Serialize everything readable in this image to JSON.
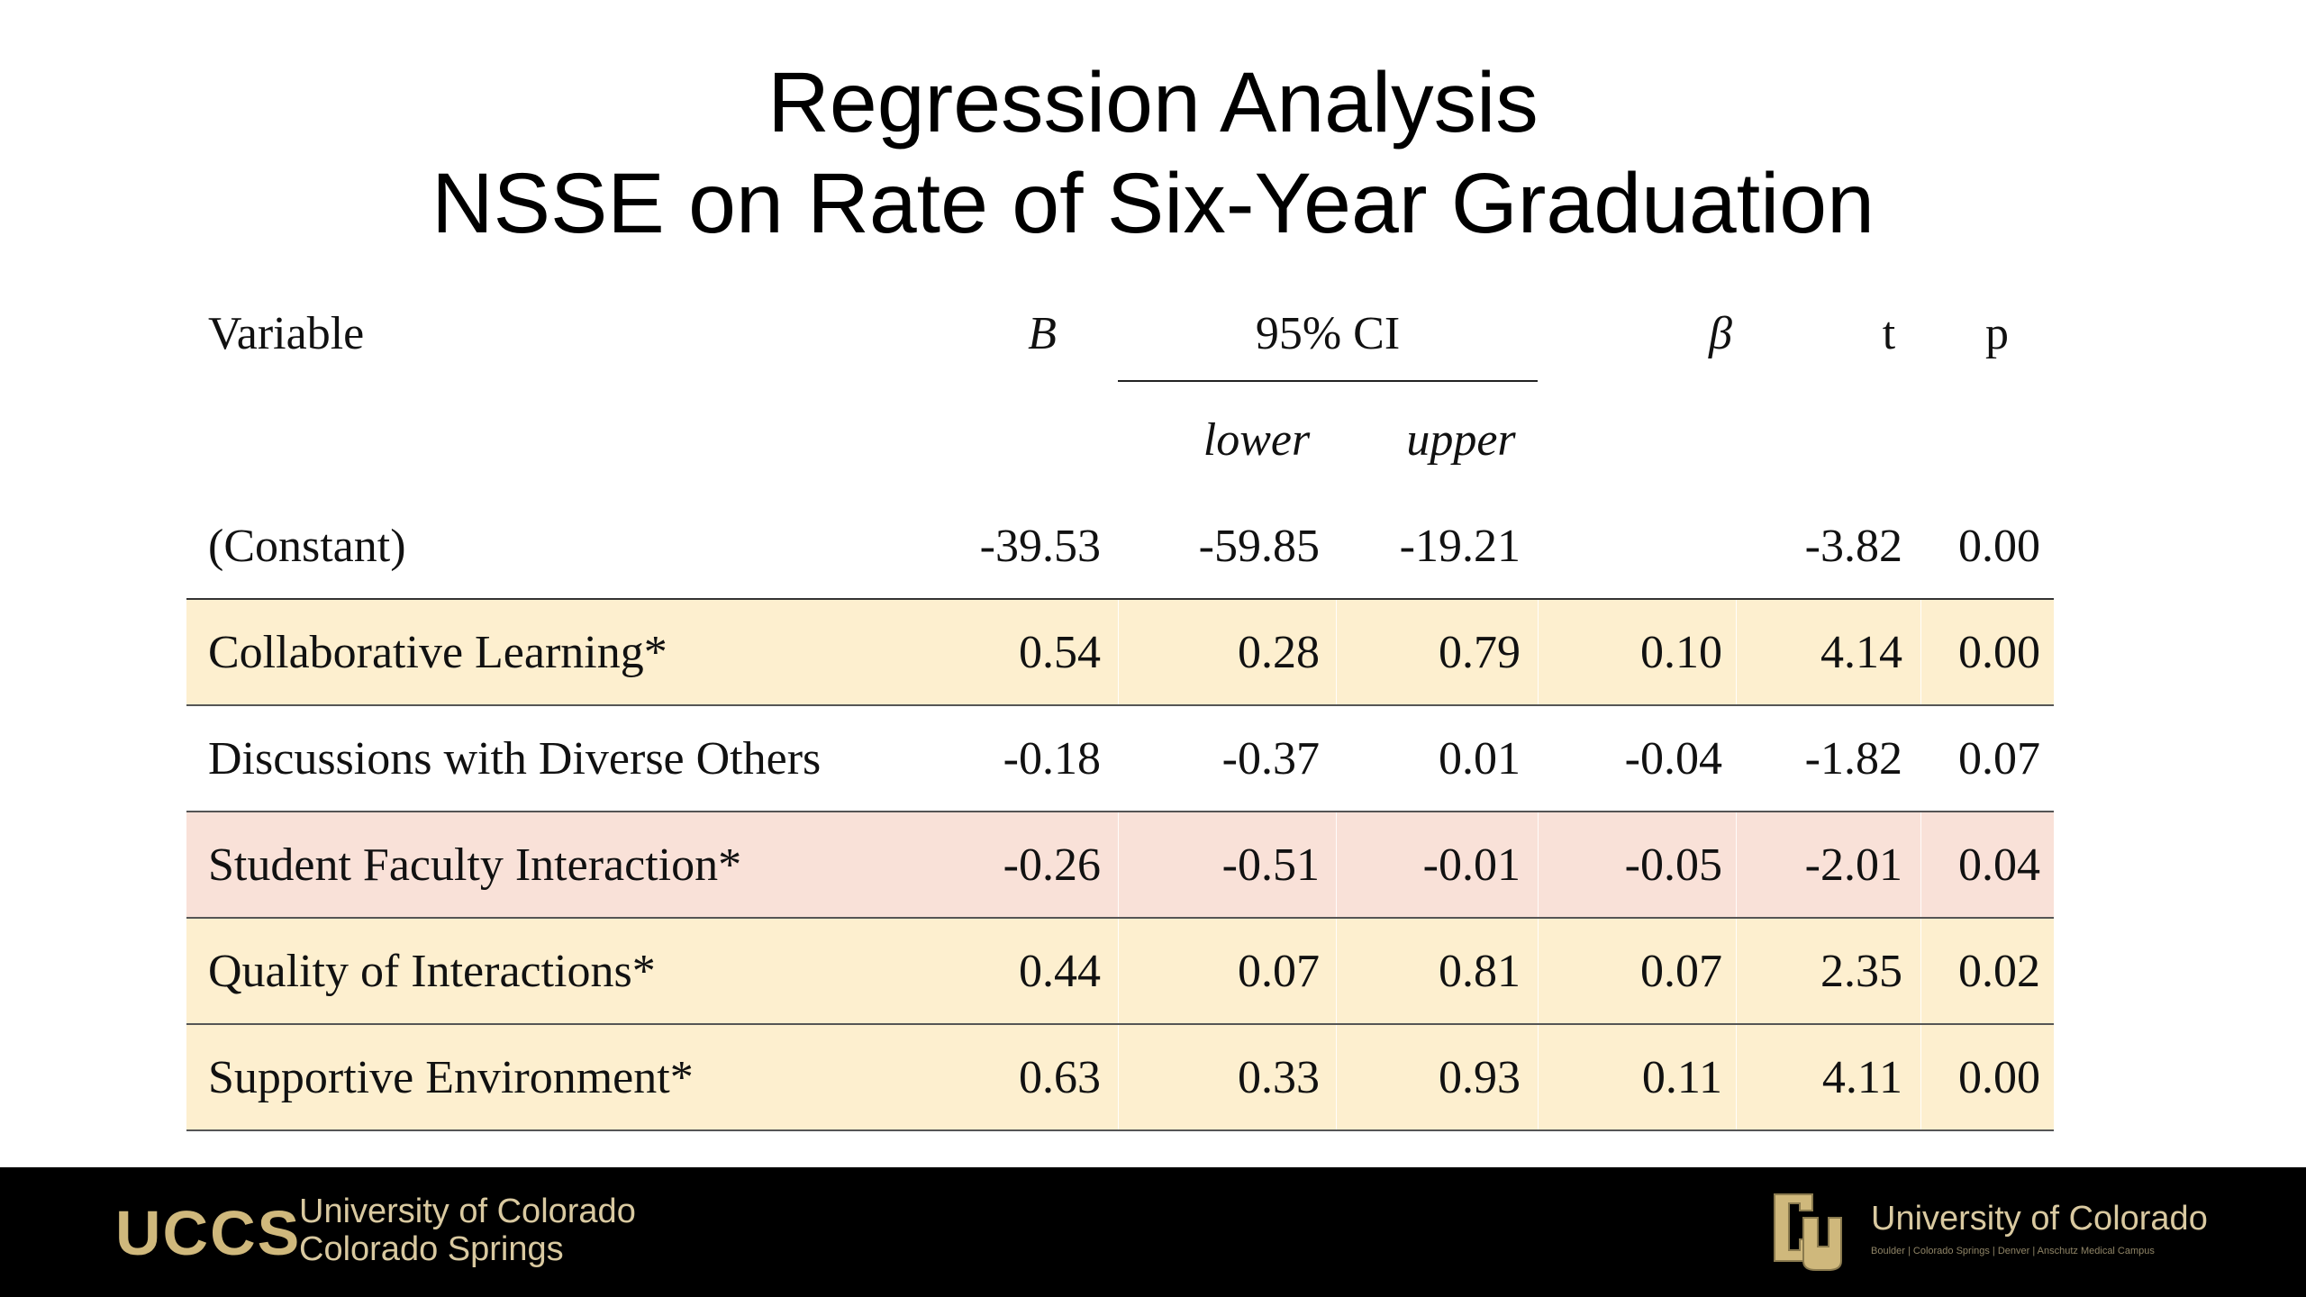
{
  "title": {
    "line1": "Regression Analysis",
    "line2": "NSSE on Rate of Six-Year Graduation"
  },
  "table": {
    "headers": {
      "variable": "Variable",
      "b": "B",
      "ci": "95% CI",
      "beta": "β",
      "t": "t",
      "p": "p",
      "lower": "lower",
      "upper": "upper"
    },
    "rows": [
      {
        "variable": "(Constant)",
        "b": "-39.53",
        "lower": "-59.85",
        "upper": "-19.21",
        "beta": "",
        "t": "-3.82",
        "p": "0.00"
      },
      {
        "variable": "Collaborative Learning*",
        "b": "0.54",
        "lower": "0.28",
        "upper": "0.79",
        "beta": "0.10",
        "t": "4.14",
        "p": "0.00"
      },
      {
        "variable": "Discussions with Diverse Others",
        "b": "-0.18",
        "lower": "-0.37",
        "upper": "0.01",
        "beta": "-0.04",
        "t": "-1.82",
        "p": "0.07"
      },
      {
        "variable": "Student Faculty Interaction*",
        "b": "-0.26",
        "lower": "-0.51",
        "upper": "-0.01",
        "beta": "-0.05",
        "t": "-2.01",
        "p": "0.04"
      },
      {
        "variable": "Quality of Interactions*",
        "b": "0.44",
        "lower": "0.07",
        "upper": "0.81",
        "beta": "0.07",
        "t": "2.35",
        "p": "0.02"
      },
      {
        "variable": "Supportive Environment*",
        "b": "0.63",
        "lower": "0.33",
        "upper": "0.93",
        "beta": "0.11",
        "t": "4.11",
        "p": "0.00"
      }
    ],
    "highlight_colors": {
      "yellow": "#fdefcf",
      "pink": "#f9e1d8"
    }
  },
  "footer": {
    "left_logo": "UCCS",
    "left_name_line1": "University of Colorado",
    "left_name_line2": "Colorado Springs",
    "right_logo_icon": "cu-logo-icon",
    "right_name": "University of Colorado",
    "right_campuses": "Boulder | Colorado Springs | Denver | Anschutz Medical Campus",
    "accent_color": "#cfb87c",
    "background": "#000000"
  }
}
